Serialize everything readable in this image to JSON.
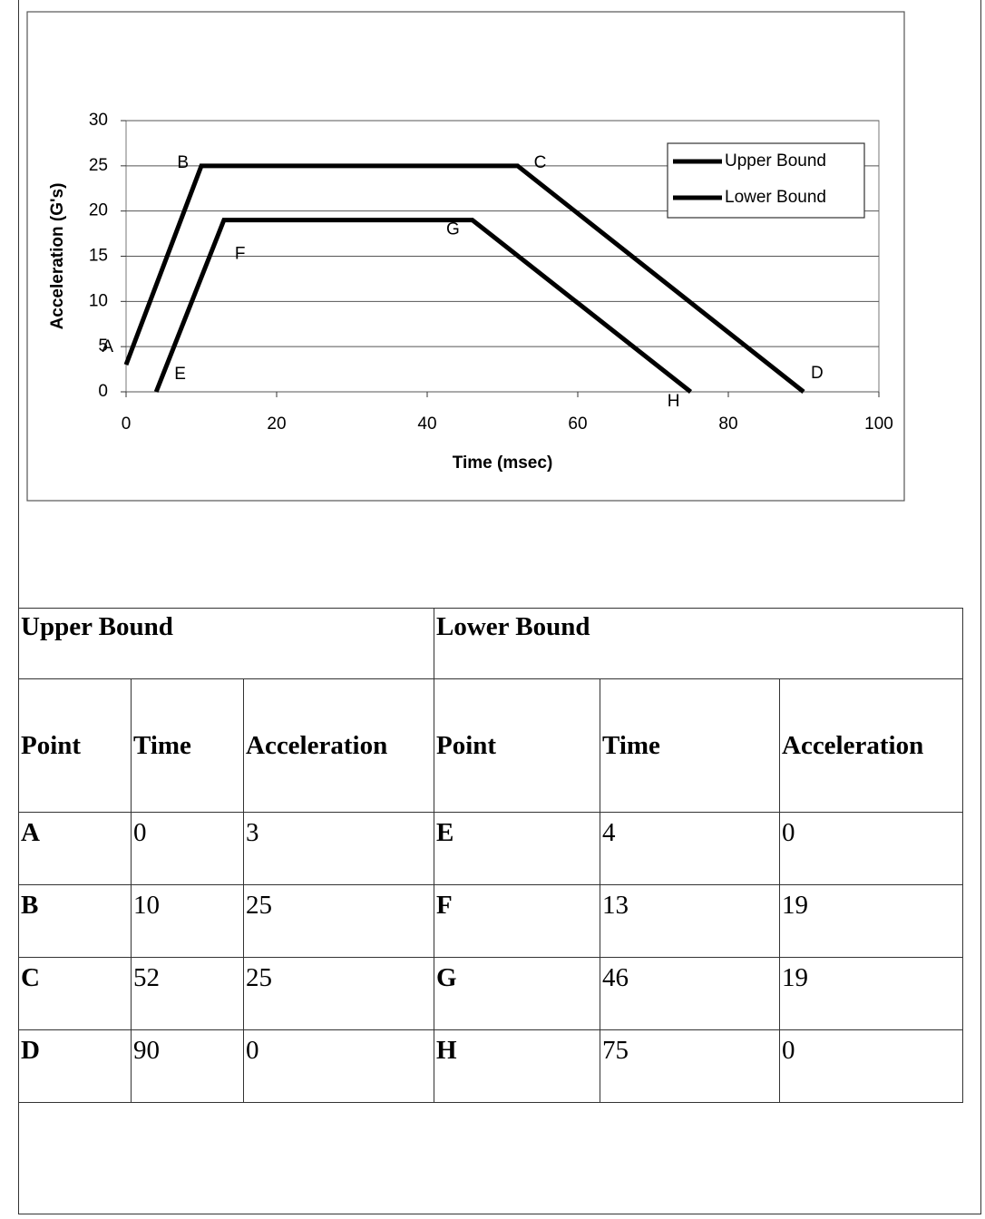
{
  "chart_data": {
    "type": "line",
    "xlabel": "Time (msec)",
    "ylabel": "Acceleration (G's)",
    "xlim": [
      0,
      100
    ],
    "xticks": [
      0,
      20,
      40,
      60,
      80,
      100
    ],
    "ylim": [
      0,
      30
    ],
    "yticks": [
      0,
      5,
      10,
      15,
      20,
      25,
      30
    ],
    "grid": true,
    "legend": "upper right",
    "series": [
      {
        "name": "Upper Bound",
        "color": "#000000",
        "x": [
          0,
          10,
          52,
          90
        ],
        "values": [
          3,
          25,
          25,
          0
        ],
        "point_labels": [
          "A",
          "B",
          "C",
          "D"
        ]
      },
      {
        "name": "Lower Bound",
        "color": "#000000",
        "x": [
          4,
          13,
          46,
          75
        ],
        "values": [
          0,
          19,
          19,
          0
        ],
        "point_labels": [
          "E",
          "F",
          "G",
          "H"
        ]
      }
    ]
  },
  "table": {
    "groups": [
      "Upper Bound",
      "Lower Bound"
    ],
    "columns": [
      "Point",
      "Time",
      "Acceleration",
      "Point",
      "Time",
      "Acceleration"
    ],
    "rows": [
      [
        "A",
        0,
        3,
        "E",
        4,
        0
      ],
      [
        "B",
        10,
        25,
        "F",
        13,
        19
      ],
      [
        "C",
        52,
        25,
        "G",
        46,
        19
      ],
      [
        "D",
        90,
        0,
        "H",
        75,
        0
      ]
    ]
  }
}
